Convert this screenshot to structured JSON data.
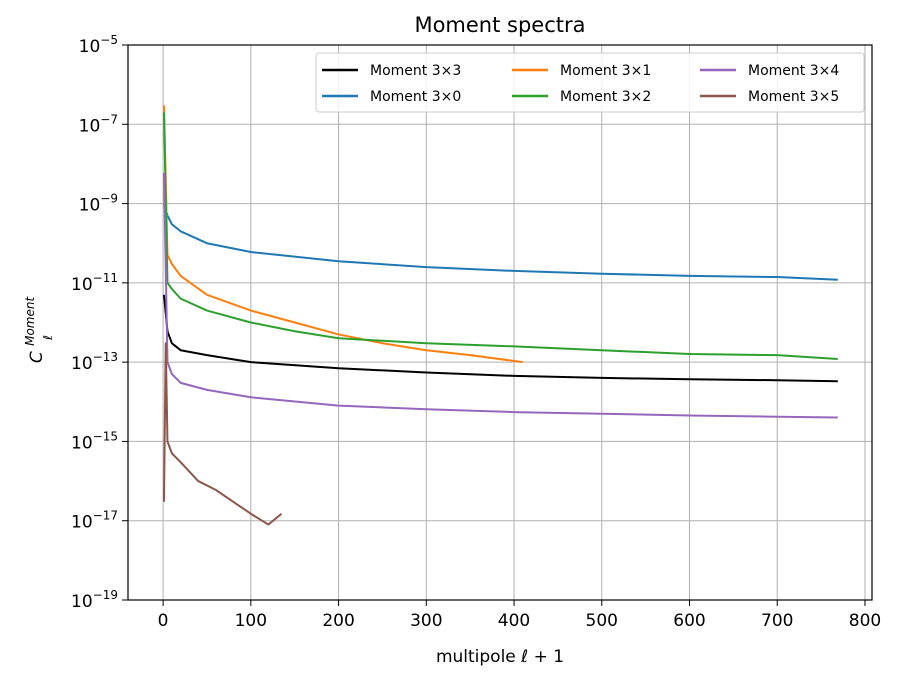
{
  "chart_data": {
    "type": "line",
    "title": "Moment spectra",
    "xlabel": "multipole ℓ + 1",
    "ylabel_main": "C",
    "ylabel_sub": "ℓ",
    "ylabel_sup": "Moment",
    "xlim": [
      -40,
      808
    ],
    "ylim_log10": [
      -19,
      -5
    ],
    "y_scale": "log",
    "grid": true,
    "legend_position": "top-right",
    "x_ticks": [
      0,
      100,
      200,
      300,
      400,
      500,
      600,
      700,
      800
    ],
    "x_tick_labels": [
      "0",
      "100",
      "200",
      "300",
      "400",
      "500",
      "600",
      "700",
      "800"
    ],
    "y_ticks_log10": [
      -19,
      -17,
      -15,
      -13,
      -11,
      -9,
      -7,
      -5
    ],
    "y_tick_bases": [
      "10",
      "10",
      "10",
      "10",
      "10",
      "10",
      "10",
      "10"
    ],
    "y_tick_exponents": [
      "−19",
      "−17",
      "−15",
      "−13",
      "−11",
      "−9",
      "−7",
      "−5"
    ],
    "series": [
      {
        "name": "Moment 3×3",
        "color": "#000000",
        "points": [
          [
            1,
            5e-12
          ],
          [
            5,
            6e-13
          ],
          [
            10,
            3e-13
          ],
          [
            20,
            2e-13
          ],
          [
            50,
            1.5e-13
          ],
          [
            100,
            1e-13
          ],
          [
            200,
            7e-14
          ],
          [
            300,
            5.5e-14
          ],
          [
            400,
            4.5e-14
          ],
          [
            500,
            4e-14
          ],
          [
            600,
            3.7e-14
          ],
          [
            700,
            3.5e-14
          ],
          [
            769,
            3.3e-14
          ]
        ]
      },
      {
        "name": "Moment 3×0",
        "color": "#1f77b4",
        "points": [
          [
            1,
            1e-09
          ],
          [
            5,
            5e-10
          ],
          [
            10,
            3e-10
          ],
          [
            20,
            2e-10
          ],
          [
            50,
            1e-10
          ],
          [
            100,
            6e-11
          ],
          [
            200,
            3.5e-11
          ],
          [
            300,
            2.5e-11
          ],
          [
            400,
            2e-11
          ],
          [
            500,
            1.7e-11
          ],
          [
            600,
            1.5e-11
          ],
          [
            700,
            1.4e-11
          ],
          [
            769,
            1.2e-11
          ]
        ]
      },
      {
        "name": "Moment 3×1",
        "color": "#ff7f0e",
        "points": [
          [
            1,
            3e-07
          ],
          [
            5,
            5e-11
          ],
          [
            10,
            3e-11
          ],
          [
            20,
            1.5e-11
          ],
          [
            50,
            5e-12
          ],
          [
            100,
            2e-12
          ],
          [
            150,
            1e-12
          ],
          [
            200,
            5e-13
          ],
          [
            250,
            3e-13
          ],
          [
            300,
            2e-13
          ],
          [
            350,
            1.5e-13
          ],
          [
            410,
            1e-13
          ]
        ]
      },
      {
        "name": "Moment 3×2",
        "color": "#2ca02c",
        "points": [
          [
            1,
            2e-07
          ],
          [
            5,
            1e-11
          ],
          [
            10,
            7e-12
          ],
          [
            20,
            4e-12
          ],
          [
            50,
            2e-12
          ],
          [
            100,
            1e-12
          ],
          [
            150,
            6e-13
          ],
          [
            200,
            4e-13
          ],
          [
            300,
            3e-13
          ],
          [
            400,
            2.5e-13
          ],
          [
            500,
            2e-13
          ],
          [
            600,
            1.6e-13
          ],
          [
            700,
            1.5e-13
          ],
          [
            769,
            1.2e-13
          ]
        ]
      },
      {
        "name": "Moment 3×4",
        "color": "#9467bd",
        "points": [
          [
            1,
            6e-09
          ],
          [
            5,
            1e-13
          ],
          [
            10,
            5e-14
          ],
          [
            20,
            3e-14
          ],
          [
            50,
            2e-14
          ],
          [
            100,
            1.3e-14
          ],
          [
            200,
            8e-15
          ],
          [
            300,
            6.5e-15
          ],
          [
            400,
            5.5e-15
          ],
          [
            500,
            5e-15
          ],
          [
            600,
            4.5e-15
          ],
          [
            700,
            4.2e-15
          ],
          [
            769,
            4e-15
          ]
        ]
      },
      {
        "name": "Moment 3×5",
        "color": "#8c564b",
        "points": [
          [
            1,
            3e-17
          ],
          [
            3,
            3e-13
          ],
          [
            5,
            1e-15
          ],
          [
            10,
            5e-16
          ],
          [
            20,
            3e-16
          ],
          [
            40,
            1e-16
          ],
          [
            60,
            6e-17
          ],
          [
            80,
            3e-17
          ],
          [
            100,
            1.5e-17
          ],
          [
            120,
            8e-18
          ],
          [
            135,
            1.5e-17
          ]
        ]
      }
    ]
  }
}
